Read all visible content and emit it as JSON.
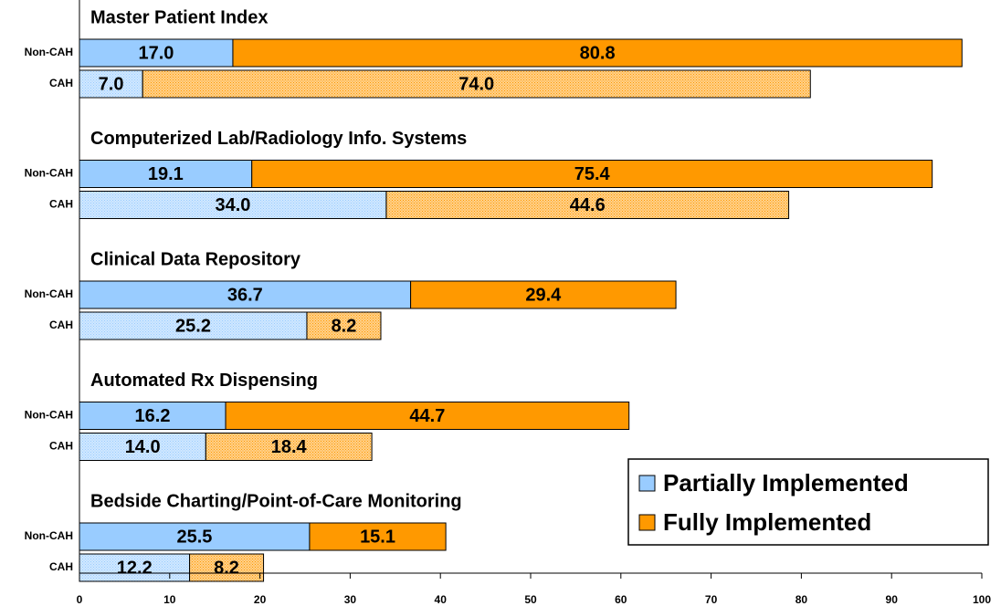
{
  "chart_data": {
    "type": "bar",
    "orientation": "horizontal",
    "stacked": true,
    "groups": [
      "Master Patient Index",
      "Computerized Lab/Radiology Info. Systems",
      "Clinical Data Repository",
      "Automated Rx Dispensing",
      "Bedside Charting/Point-of-Care Monitoring"
    ],
    "categories": [
      "Non-CAH",
      "CAH"
    ],
    "series": [
      {
        "name": "Partially Implemented",
        "color": "#99ccff",
        "values": [
          [
            17.0,
            7.0
          ],
          [
            19.1,
            34.0
          ],
          [
            36.7,
            25.2
          ],
          [
            16.2,
            14.0
          ],
          [
            25.5,
            12.2
          ]
        ],
        "value_labels": [
          [
            "17.0",
            "7.0"
          ],
          [
            "19.1",
            "34.0"
          ],
          [
            "36.7",
            "25.2"
          ],
          [
            "16.2",
            "14.0"
          ],
          [
            "25.5",
            "12.2"
          ]
        ]
      },
      {
        "name": "Fully Implemented",
        "color": "#ff9900",
        "values": [
          [
            80.8,
            74.0
          ],
          [
            75.4,
            44.6
          ],
          [
            29.4,
            8.2
          ],
          [
            44.7,
            18.4
          ],
          [
            15.1,
            8.2
          ]
        ],
        "value_labels": [
          [
            "80.8",
            "74.0"
          ],
          [
            "75.4",
            "44.6"
          ],
          [
            "29.4",
            "8.2"
          ],
          [
            "44.7",
            "18.4"
          ],
          [
            "15.1",
            "8.2"
          ]
        ]
      }
    ],
    "xlim": [
      0,
      100
    ],
    "xticks": [
      0,
      10,
      20,
      30,
      40,
      50,
      60,
      70,
      80,
      90,
      100
    ],
    "legend": "lower right"
  }
}
